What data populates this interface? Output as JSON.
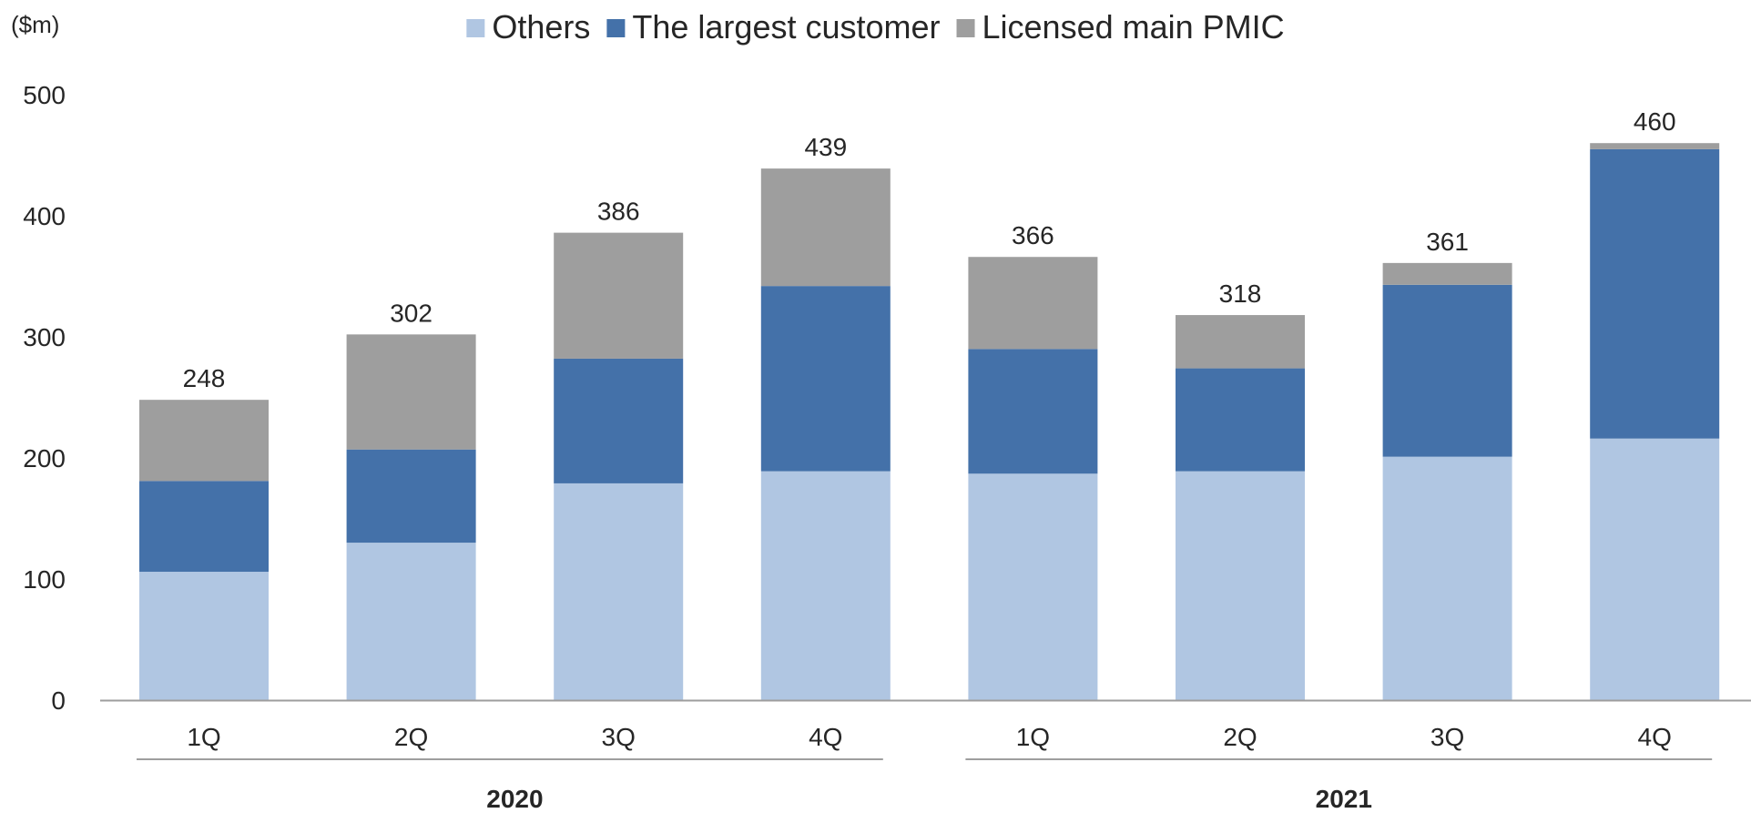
{
  "chart_data": {
    "type": "bar",
    "stacked": true,
    "unit_label": "($m)",
    "title": "",
    "xlabel": "",
    "ylabel": "",
    "ylim": [
      0,
      500
    ],
    "yticks": [
      0,
      100,
      200,
      300,
      400,
      500
    ],
    "grid": false,
    "legend_position": "top-center",
    "categories": [
      "1Q",
      "2Q",
      "3Q",
      "4Q",
      "1Q",
      "2Q",
      "3Q",
      "4Q"
    ],
    "groups": [
      {
        "label": "2020",
        "categories": [
          "1Q",
          "2Q",
          "3Q",
          "4Q"
        ]
      },
      {
        "label": "2021",
        "categories": [
          "1Q",
          "2Q",
          "3Q",
          "4Q"
        ]
      }
    ],
    "series": [
      {
        "name": "Others",
        "color": "#B0C6E2",
        "values": [
          106,
          130,
          179,
          189,
          187,
          189,
          201,
          216
        ]
      },
      {
        "name": "The largest customer",
        "color": "#4471A9",
        "values": [
          75,
          77,
          103,
          153,
          103,
          85,
          142,
          239
        ]
      },
      {
        "name": "Licensed main PMIC",
        "color": "#9E9E9E",
        "values": [
          67,
          95,
          104,
          97,
          76,
          44,
          18,
          5
        ]
      }
    ],
    "totals": [
      248,
      302,
      386,
      439,
      366,
      318,
      361,
      460
    ]
  }
}
